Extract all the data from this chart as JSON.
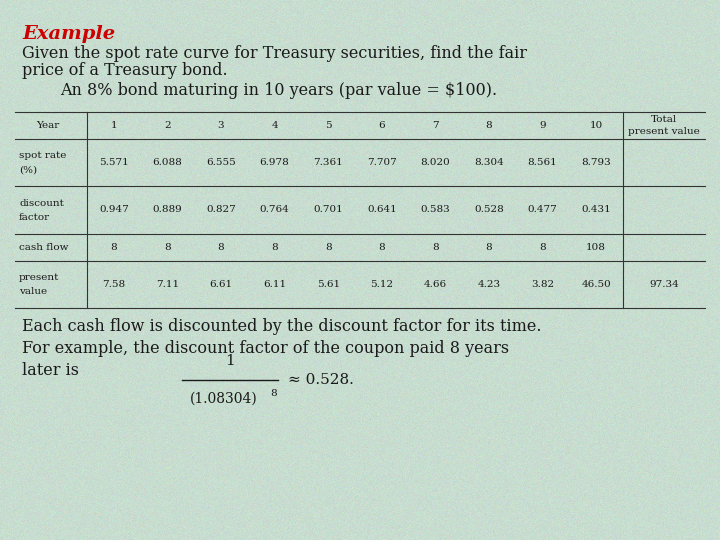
{
  "title": "Example",
  "intro_line1": "Given the spot rate curve for Treasury securities, find the fair",
  "intro_line2": "price of a Treasury bond.",
  "sub_line": "An 8% bond maturing in 10 years (par value = $100).",
  "table_headers": [
    "Year",
    "1",
    "2",
    "3",
    "4",
    "5",
    "6",
    "7",
    "8",
    "9",
    "10"
  ],
  "table_total_header": [
    "Total",
    "present value"
  ],
  "row_labels": [
    "spot rate\n(%)",
    "discount\nfactor",
    "cash flow",
    "present\nvalue"
  ],
  "spot_rate": [
    "5.571",
    "6.088",
    "6.555",
    "6.978",
    "7.361",
    "7.707",
    "8.020",
    "8.304",
    "8.561",
    "8.793"
  ],
  "discount_factor": [
    "0.947",
    "0.889",
    "0.827",
    "0.764",
    "0.701",
    "0.641",
    "0.583",
    "0.528",
    "0.477",
    "0.431"
  ],
  "cash_flow": [
    "8",
    "8",
    "8",
    "8",
    "8",
    "8",
    "8",
    "8",
    "8",
    "108"
  ],
  "present_value": [
    "7.58",
    "7.11",
    "6.61",
    "6.11",
    "5.61",
    "5.12",
    "4.66",
    "4.23",
    "3.82",
    "46.50"
  ],
  "total_pv": "97.34",
  "footer_line1": "Each cash flow is discounted by the discount factor for its time.",
  "footer_line2": "For example, the discount factor of the coupon paid 8 years",
  "footer_line3": "later is",
  "formula_approx": "≈ 0.528.",
  "bg_color_rgb": [
    0.784,
    0.867,
    0.816
  ],
  "text_color": "#1a1a1a",
  "title_color": "#cc0000",
  "line_color": "#333333"
}
